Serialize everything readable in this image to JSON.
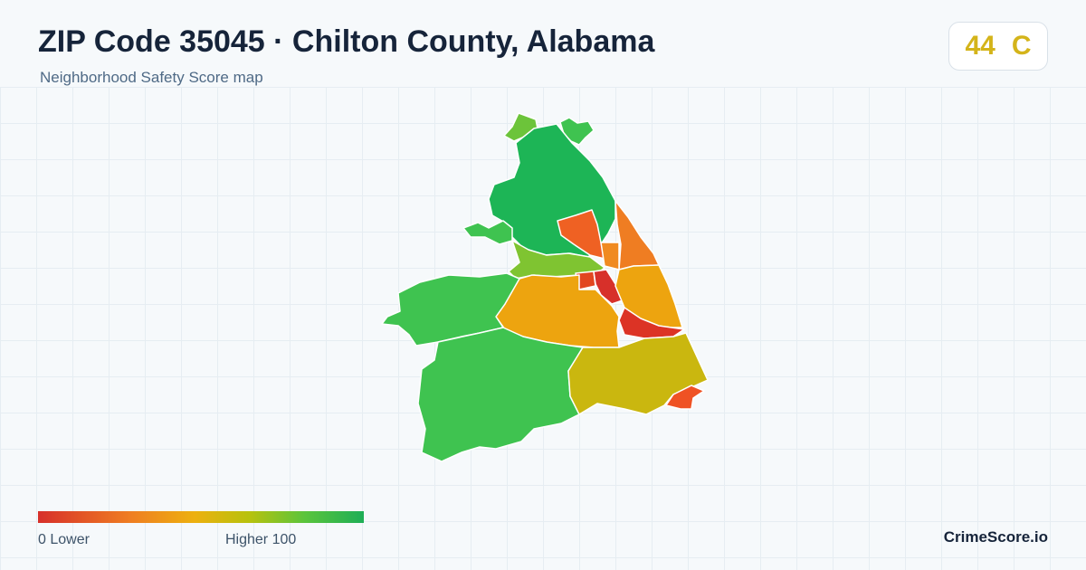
{
  "header": {
    "title": "ZIP Code 35045 · Chilton County, Alabama",
    "subtitle": "Neighborhood Safety Score map"
  },
  "score": {
    "value": "44",
    "grade": "C",
    "color": "#d4b41a"
  },
  "legend": {
    "low_label": "0  Lower",
    "high_label": "Higher  100",
    "min": 0,
    "max": 100,
    "low_color": "#d7302a",
    "high_color": "#1eae56"
  },
  "brand": {
    "name": "CrimeScore.io"
  },
  "colors": {
    "background": "#f6f9fb",
    "grid": "#e6edf2",
    "title": "#16243a",
    "subtitle": "#4f6a86"
  }
}
